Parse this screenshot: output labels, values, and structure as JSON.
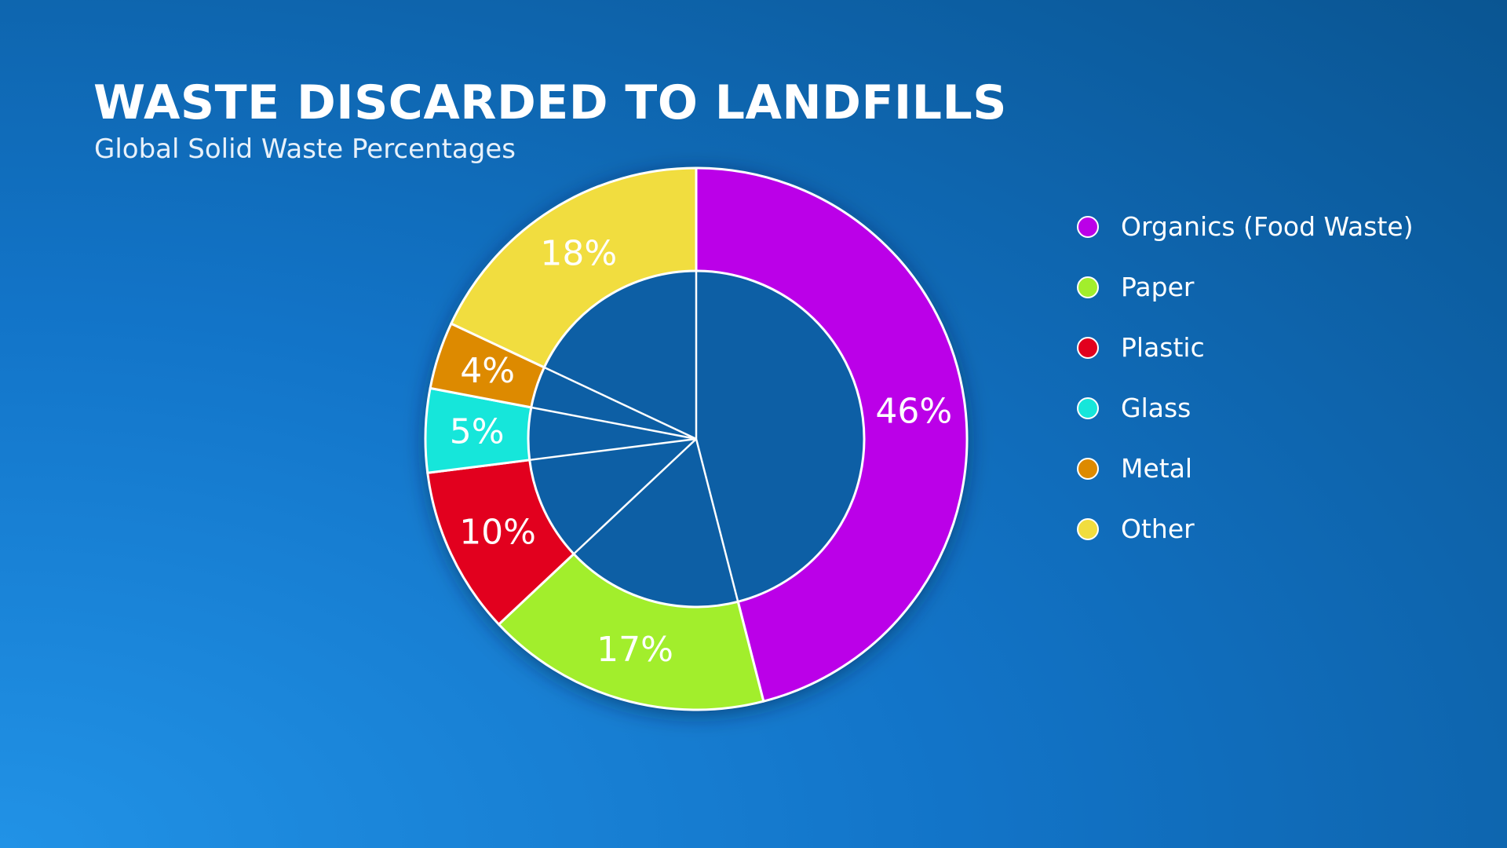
{
  "chart_data": {
    "type": "pie",
    "title": "WASTE DISCARDED TO LANDFILLS",
    "subtitle": "Global Solid Waste Percentages",
    "categories": [
      "Organics (Food Waste)",
      "Paper",
      "Plastic",
      "Glass",
      "Metal",
      "Other"
    ],
    "values": [
      46,
      17,
      10,
      5,
      4,
      18
    ],
    "data_labels": [
      "46%",
      "17%",
      "10%",
      "5%",
      "4%",
      "18%"
    ],
    "colors": [
      "#bb00e8",
      "#a2ee2c",
      "#e2001e",
      "#16e6da",
      "#dd8a00",
      "#f1dd3f"
    ],
    "donut": true,
    "legend_position": "right"
  }
}
